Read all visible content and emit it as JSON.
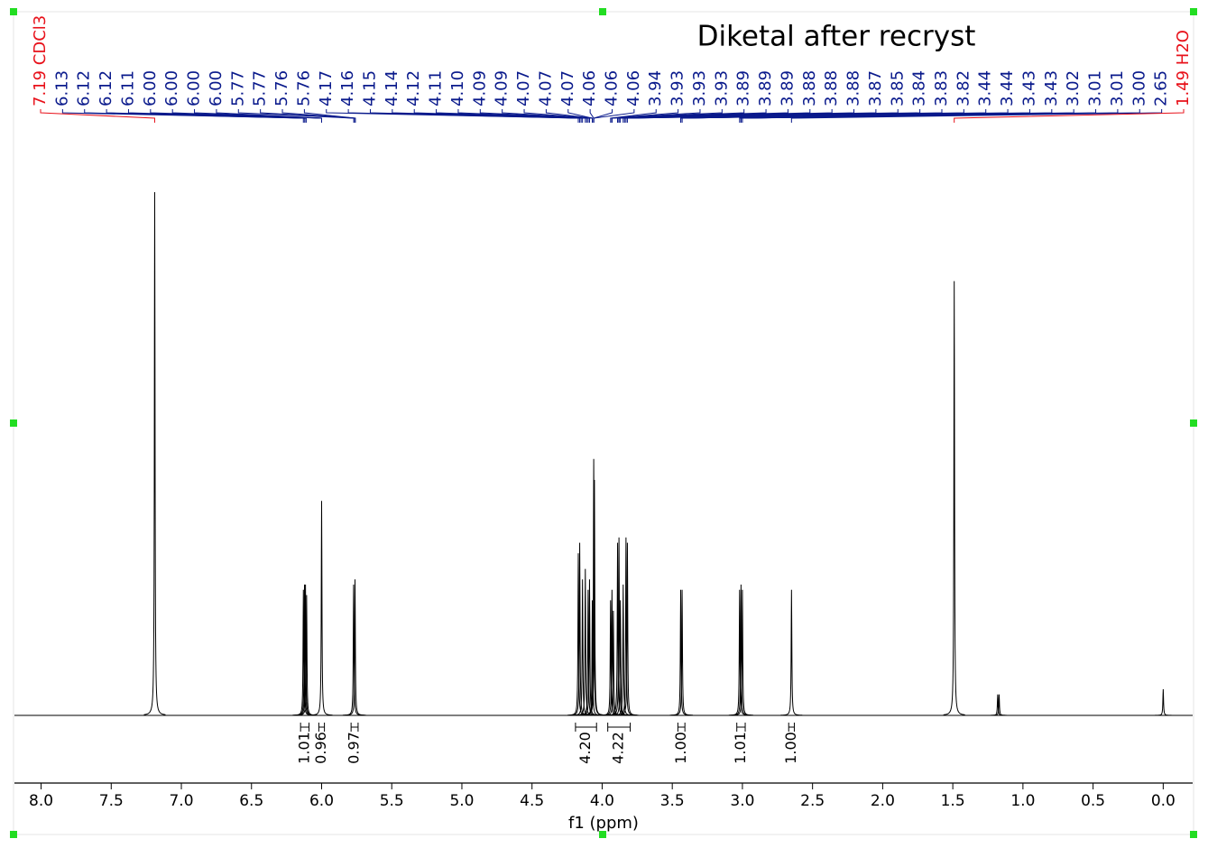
{
  "chart_data": {
    "type": "nmr",
    "title": "Diketal after recryst",
    "xlabel": "f1 (ppm)",
    "xlim": [
      8.19,
      -0.21
    ],
    "ylim": [
      0,
      100
    ],
    "xticks": [
      {
        "value": 8,
        "label": "8.0"
      },
      {
        "value": 7.5,
        "label": "7.5"
      },
      {
        "value": 7,
        "label": "7.0"
      },
      {
        "value": 6.5,
        "label": "6.5"
      },
      {
        "value": 6,
        "label": "6.0"
      },
      {
        "value": 5.5,
        "label": "5.5"
      },
      {
        "value": 5,
        "label": "5.0"
      },
      {
        "value": 4.5,
        "label": "4.5"
      },
      {
        "value": 4,
        "label": "4.0"
      },
      {
        "value": 3.5,
        "label": "3.5"
      },
      {
        "value": 3,
        "label": "3.0"
      },
      {
        "value": 2.5,
        "label": "2.5"
      },
      {
        "value": 2,
        "label": "2.0"
      },
      {
        "value": 1.5,
        "label": "1.5"
      },
      {
        "value": 1,
        "label": "1.0"
      },
      {
        "value": 0.5,
        "label": "0.5"
      },
      {
        "value": 0,
        "label": "0.0"
      }
    ],
    "line_color": "#000000",
    "peak_labels": [
      {
        "value": 7.19,
        "label": "7.19 CDCl3",
        "color": "#e8111a"
      },
      {
        "value": 6.13,
        "label": "6.13",
        "color": "#0a1a8c"
      },
      {
        "value": 6.12,
        "label": "6.12",
        "color": "#0a1a8c"
      },
      {
        "value": 6.12,
        "label": "6.12",
        "color": "#0a1a8c"
      },
      {
        "value": 6.11,
        "label": "6.11",
        "color": "#0a1a8c"
      },
      {
        "value": 6.0,
        "label": "6.00",
        "color": "#0a1a8c"
      },
      {
        "value": 6.0,
        "label": "6.00",
        "color": "#0a1a8c"
      },
      {
        "value": 6.0,
        "label": "6.00",
        "color": "#0a1a8c"
      },
      {
        "value": 6.0,
        "label": "6.00",
        "color": "#0a1a8c"
      },
      {
        "value": 5.77,
        "label": "5.77",
        "color": "#0a1a8c"
      },
      {
        "value": 5.77,
        "label": "5.77",
        "color": "#0a1a8c"
      },
      {
        "value": 5.76,
        "label": "5.76",
        "color": "#0a1a8c"
      },
      {
        "value": 5.76,
        "label": "5.76",
        "color": "#0a1a8c"
      },
      {
        "value": 4.17,
        "label": "4.17",
        "color": "#0a1a8c"
      },
      {
        "value": 4.16,
        "label": "4.16",
        "color": "#0a1a8c"
      },
      {
        "value": 4.15,
        "label": "4.15",
        "color": "#0a1a8c"
      },
      {
        "value": 4.14,
        "label": "4.14",
        "color": "#0a1a8c"
      },
      {
        "value": 4.12,
        "label": "4.12",
        "color": "#0a1a8c"
      },
      {
        "value": 4.11,
        "label": "4.11",
        "color": "#0a1a8c"
      },
      {
        "value": 4.1,
        "label": "4.10",
        "color": "#0a1a8c"
      },
      {
        "value": 4.09,
        "label": "4.09",
        "color": "#0a1a8c"
      },
      {
        "value": 4.09,
        "label": "4.09",
        "color": "#0a1a8c"
      },
      {
        "value": 4.07,
        "label": "4.07",
        "color": "#0a1a8c"
      },
      {
        "value": 4.07,
        "label": "4.07",
        "color": "#0a1a8c"
      },
      {
        "value": 4.07,
        "label": "4.07",
        "color": "#0a1a8c"
      },
      {
        "value": 4.06,
        "label": "4.06",
        "color": "#0a1a8c"
      },
      {
        "value": 4.06,
        "label": "4.06",
        "color": "#0a1a8c"
      },
      {
        "value": 4.06,
        "label": "4.06",
        "color": "#0a1a8c"
      },
      {
        "value": 3.94,
        "label": "3.94",
        "color": "#0a1a8c"
      },
      {
        "value": 3.93,
        "label": "3.93",
        "color": "#0a1a8c"
      },
      {
        "value": 3.93,
        "label": "3.93",
        "color": "#0a1a8c"
      },
      {
        "value": 3.93,
        "label": "3.93",
        "color": "#0a1a8c"
      },
      {
        "value": 3.89,
        "label": "3.89",
        "color": "#0a1a8c"
      },
      {
        "value": 3.89,
        "label": "3.89",
        "color": "#0a1a8c"
      },
      {
        "value": 3.89,
        "label": "3.89",
        "color": "#0a1a8c"
      },
      {
        "value": 3.88,
        "label": "3.88",
        "color": "#0a1a8c"
      },
      {
        "value": 3.88,
        "label": "3.88",
        "color": "#0a1a8c"
      },
      {
        "value": 3.88,
        "label": "3.88",
        "color": "#0a1a8c"
      },
      {
        "value": 3.87,
        "label": "3.87",
        "color": "#0a1a8c"
      },
      {
        "value": 3.85,
        "label": "3.85",
        "color": "#0a1a8c"
      },
      {
        "value": 3.84,
        "label": "3.84",
        "color": "#0a1a8c"
      },
      {
        "value": 3.83,
        "label": "3.83",
        "color": "#0a1a8c"
      },
      {
        "value": 3.82,
        "label": "3.82",
        "color": "#0a1a8c"
      },
      {
        "value": 3.44,
        "label": "3.44",
        "color": "#0a1a8c"
      },
      {
        "value": 3.44,
        "label": "3.44",
        "color": "#0a1a8c"
      },
      {
        "value": 3.43,
        "label": "3.43",
        "color": "#0a1a8c"
      },
      {
        "value": 3.43,
        "label": "3.43",
        "color": "#0a1a8c"
      },
      {
        "value": 3.02,
        "label": "3.02",
        "color": "#0a1a8c"
      },
      {
        "value": 3.01,
        "label": "3.01",
        "color": "#0a1a8c"
      },
      {
        "value": 3.01,
        "label": "3.01",
        "color": "#0a1a8c"
      },
      {
        "value": 3.0,
        "label": "3.00",
        "color": "#0a1a8c"
      },
      {
        "value": 2.65,
        "label": "2.65",
        "color": "#0a1a8c"
      },
      {
        "value": 1.49,
        "label": "1.49 H2O",
        "color": "#e8111a"
      }
    ],
    "peaks": {
      "ppm": [
        7.19,
        6.13,
        6.122,
        6.115,
        6.107,
        6.0,
        5.772,
        5.762,
        4.17,
        4.16,
        4.14,
        4.12,
        4.1,
        4.09,
        4.07,
        4.06,
        4.055,
        3.94,
        3.93,
        3.92,
        3.89,
        3.88,
        3.87,
        3.85,
        3.83,
        3.82,
        3.44,
        3.43,
        3.02,
        3.01,
        3.0,
        2.65,
        1.49,
        1.18,
        1.17,
        0.0
      ],
      "intensity": [
        100,
        24,
        25,
        25,
        23,
        41,
        25,
        26,
        31,
        33,
        26,
        28,
        24,
        26,
        22,
        49,
        45,
        22,
        24,
        20,
        33,
        34,
        22,
        25,
        34,
        33,
        24,
        24,
        24,
        25,
        24,
        24,
        83,
        4,
        4,
        5
      ]
    },
    "integrals": {
      "values": [
        1.01,
        0.96,
        0.97,
        4.2,
        4.22,
        1.0,
        1.01,
        1.0
      ],
      "value_labels": [
        "1.01",
        "0.96",
        "0.97",
        "4.20",
        "4.22",
        "1.00",
        "1.01",
        "1.00"
      ],
      "ranges": [
        [
          6.15,
          6.09
        ],
        [
          6.02,
          5.98
        ],
        [
          5.79,
          5.74
        ],
        [
          4.19,
          4.04
        ],
        [
          3.96,
          3.8
        ],
        [
          3.46,
          3.41
        ],
        [
          3.04,
          2.98
        ],
        [
          2.67,
          2.63
        ]
      ]
    }
  }
}
